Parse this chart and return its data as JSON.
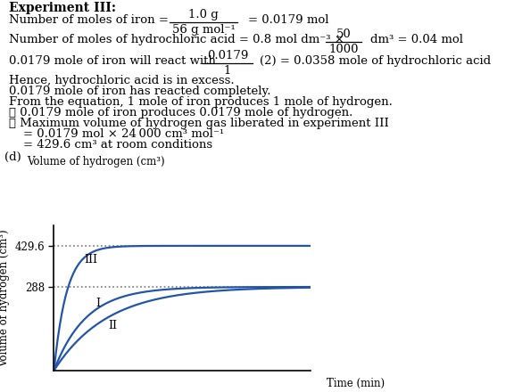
{
  "title_bold": "Experiment III:",
  "line4": "Hence, hydrochloric acid is in excess.",
  "line5": "0.0179 mole of iron has reacted completely.",
  "line6": "From the equation, 1 mole of iron produces 1 mole of hydrogen.",
  "line7": "∴ 0.0179 mole of iron produces 0.0179 mole of hydrogen.",
  "line8": "∴ Maximum volume of hydrogen gas liberated in experiment III",
  "line9": "= 0.0179 mol × 24 000 cm³ mol⁻¹",
  "line10": "= 429.6 cm³ at room conditions",
  "graph_label_d": "(d)",
  "ylabel": "Volume of hydrogen (cm³)",
  "xlabel": "Time (min)",
  "y_ticks": [
    288,
    429.6
  ],
  "y_tick_labels": [
    "288",
    "429.6"
  ],
  "curve_labels": [
    "III",
    "I",
    "II"
  ],
  "plateau_III": 429.6,
  "plateau_I": 288,
  "plateau_II": 288,
  "k_III": 2.5,
  "k_I": 1.0,
  "k_II": 0.6,
  "curve_color": "#2255aa",
  "dash_color": "#777777",
  "background_color": "#ffffff",
  "text_color": "#000000",
  "fs": 9.5,
  "fs_bold": 10,
  "fs_graph": 8.5
}
